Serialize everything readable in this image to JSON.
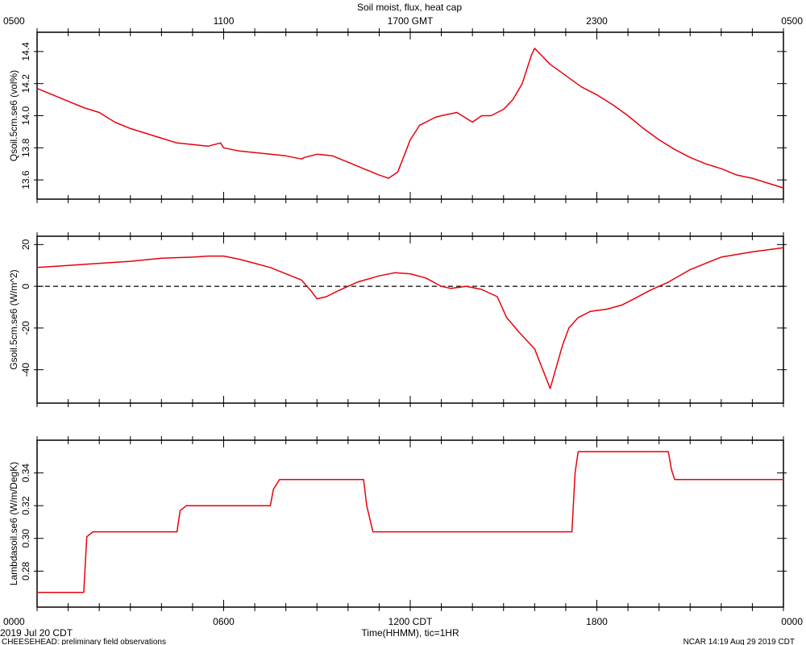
{
  "title": "Soil moist, flux, heat cap",
  "top_axis": {
    "tick_labels": [
      "0500",
      "1100",
      "1700 GMT",
      "2300",
      "0500"
    ],
    "tick_hours": [
      0,
      6,
      12,
      18,
      24
    ]
  },
  "bottom_axis": {
    "tick_labels": [
      "0000",
      "0600",
      "1200 CDT",
      "1800",
      "0000"
    ],
    "tick_hours": [
      0,
      6,
      12,
      18,
      24
    ],
    "xlabel": "Time(HHMM), tic=1HR"
  },
  "footer": {
    "date": "2019 Jul 20 CDT",
    "project": "CHEESEHEAD: preliminary field observations",
    "stamp": "NCAR 14:19 Aug 29 2019 CDT"
  },
  "line_color": "#e8000b",
  "chart_data": [
    {
      "type": "line",
      "ylabel": "Qsoil.5cm.se6 (vol%)",
      "ylim": [
        13.48,
        14.52
      ],
      "yticks": [
        13.6,
        13.8,
        14.0,
        14.2,
        14.4
      ],
      "ytick_labels": [
        "13.6",
        "13.8",
        "14.0",
        "14.2",
        "14.4"
      ],
      "x": [
        0,
        0.5,
        1,
        1.5,
        2,
        2.5,
        3,
        3.5,
        4,
        4.5,
        5,
        5.5,
        5.9,
        6.0,
        6.5,
        7,
        7.5,
        8,
        8.5,
        8.6,
        9,
        9.5,
        10,
        10.5,
        11,
        11.3,
        11.6,
        11.8,
        12.0,
        12.3,
        12.6,
        12.8,
        13.0,
        13.5,
        14.0,
        14.3,
        14.6,
        15.0,
        15.3,
        15.6,
        15.9,
        16.0,
        16.2,
        16.5,
        17,
        17.5,
        18,
        18.5,
        19,
        19.5,
        20,
        20.5,
        21,
        21.5,
        22,
        22.5,
        23,
        23.5,
        24
      ],
      "y": [
        14.17,
        14.13,
        14.09,
        14.05,
        14.02,
        13.96,
        13.92,
        13.89,
        13.86,
        13.83,
        13.82,
        13.81,
        13.83,
        13.8,
        13.78,
        13.77,
        13.76,
        13.75,
        13.73,
        13.74,
        13.76,
        13.75,
        13.71,
        13.67,
        13.63,
        13.61,
        13.65,
        13.75,
        13.85,
        13.94,
        13.97,
        13.99,
        14.0,
        14.02,
        13.96,
        14.0,
        14.0,
        14.04,
        14.1,
        14.2,
        14.38,
        14.42,
        14.38,
        14.32,
        14.25,
        14.18,
        14.13,
        14.07,
        14.0,
        13.92,
        13.85,
        13.79,
        13.74,
        13.7,
        13.67,
        13.63,
        13.61,
        13.58,
        13.55
      ]
    },
    {
      "type": "line",
      "ylabel": "Gsoil.5cm.se6 (W/m^2)",
      "ylim": [
        -56,
        24
      ],
      "yticks": [
        -40,
        -20,
        0,
        20
      ],
      "ytick_labels": [
        "-40",
        "-20",
        "0",
        "20"
      ],
      "zero_line": true,
      "x": [
        0,
        1,
        2,
        3,
        4,
        5,
        5.5,
        6,
        6.5,
        7,
        7.5,
        8,
        8.5,
        8.8,
        9.0,
        9.3,
        9.7,
        10.3,
        11,
        11.5,
        12,
        12.5,
        13,
        13.3,
        13.8,
        14.3,
        14.8,
        15.1,
        15.5,
        16.0,
        16.5,
        16.9,
        17.1,
        17.4,
        17.8,
        18.3,
        18.8,
        19.2,
        19.7,
        20.3,
        21,
        22,
        23,
        24
      ],
      "y": [
        9,
        10,
        11,
        12,
        13.5,
        14,
        14.5,
        14.5,
        13,
        11,
        9,
        6,
        3,
        -2,
        -6,
        -5,
        -2,
        2,
        5,
        6.5,
        6,
        4,
        0,
        -1,
        0,
        -1.5,
        -5,
        -15,
        -22,
        -30,
        -49,
        -28,
        -20,
        -15,
        -12,
        -11,
        -9,
        -6,
        -2,
        2,
        8,
        14,
        16.5,
        18.5
      ]
    },
    {
      "type": "line",
      "ylabel": "Lambdasoil.se6 (W/m/DegK)",
      "ylim": [
        0.258,
        0.36
      ],
      "yticks": [
        0.28,
        0.3,
        0.32,
        0.34
      ],
      "ytick_labels": [
        "0.28",
        "0.30",
        "0.32",
        "0.34"
      ],
      "x": [
        0,
        1.5,
        1.6,
        1.8,
        4.5,
        4.6,
        4.8,
        7.5,
        7.6,
        7.8,
        10.5,
        10.6,
        10.8,
        17.2,
        17.3,
        17.4,
        20.3,
        20.4,
        20.5,
        24
      ],
      "y": [
        0.267,
        0.267,
        0.301,
        0.304,
        0.304,
        0.317,
        0.32,
        0.32,
        0.33,
        0.336,
        0.336,
        0.32,
        0.304,
        0.304,
        0.34,
        0.353,
        0.353,
        0.342,
        0.336,
        0.336
      ]
    }
  ]
}
